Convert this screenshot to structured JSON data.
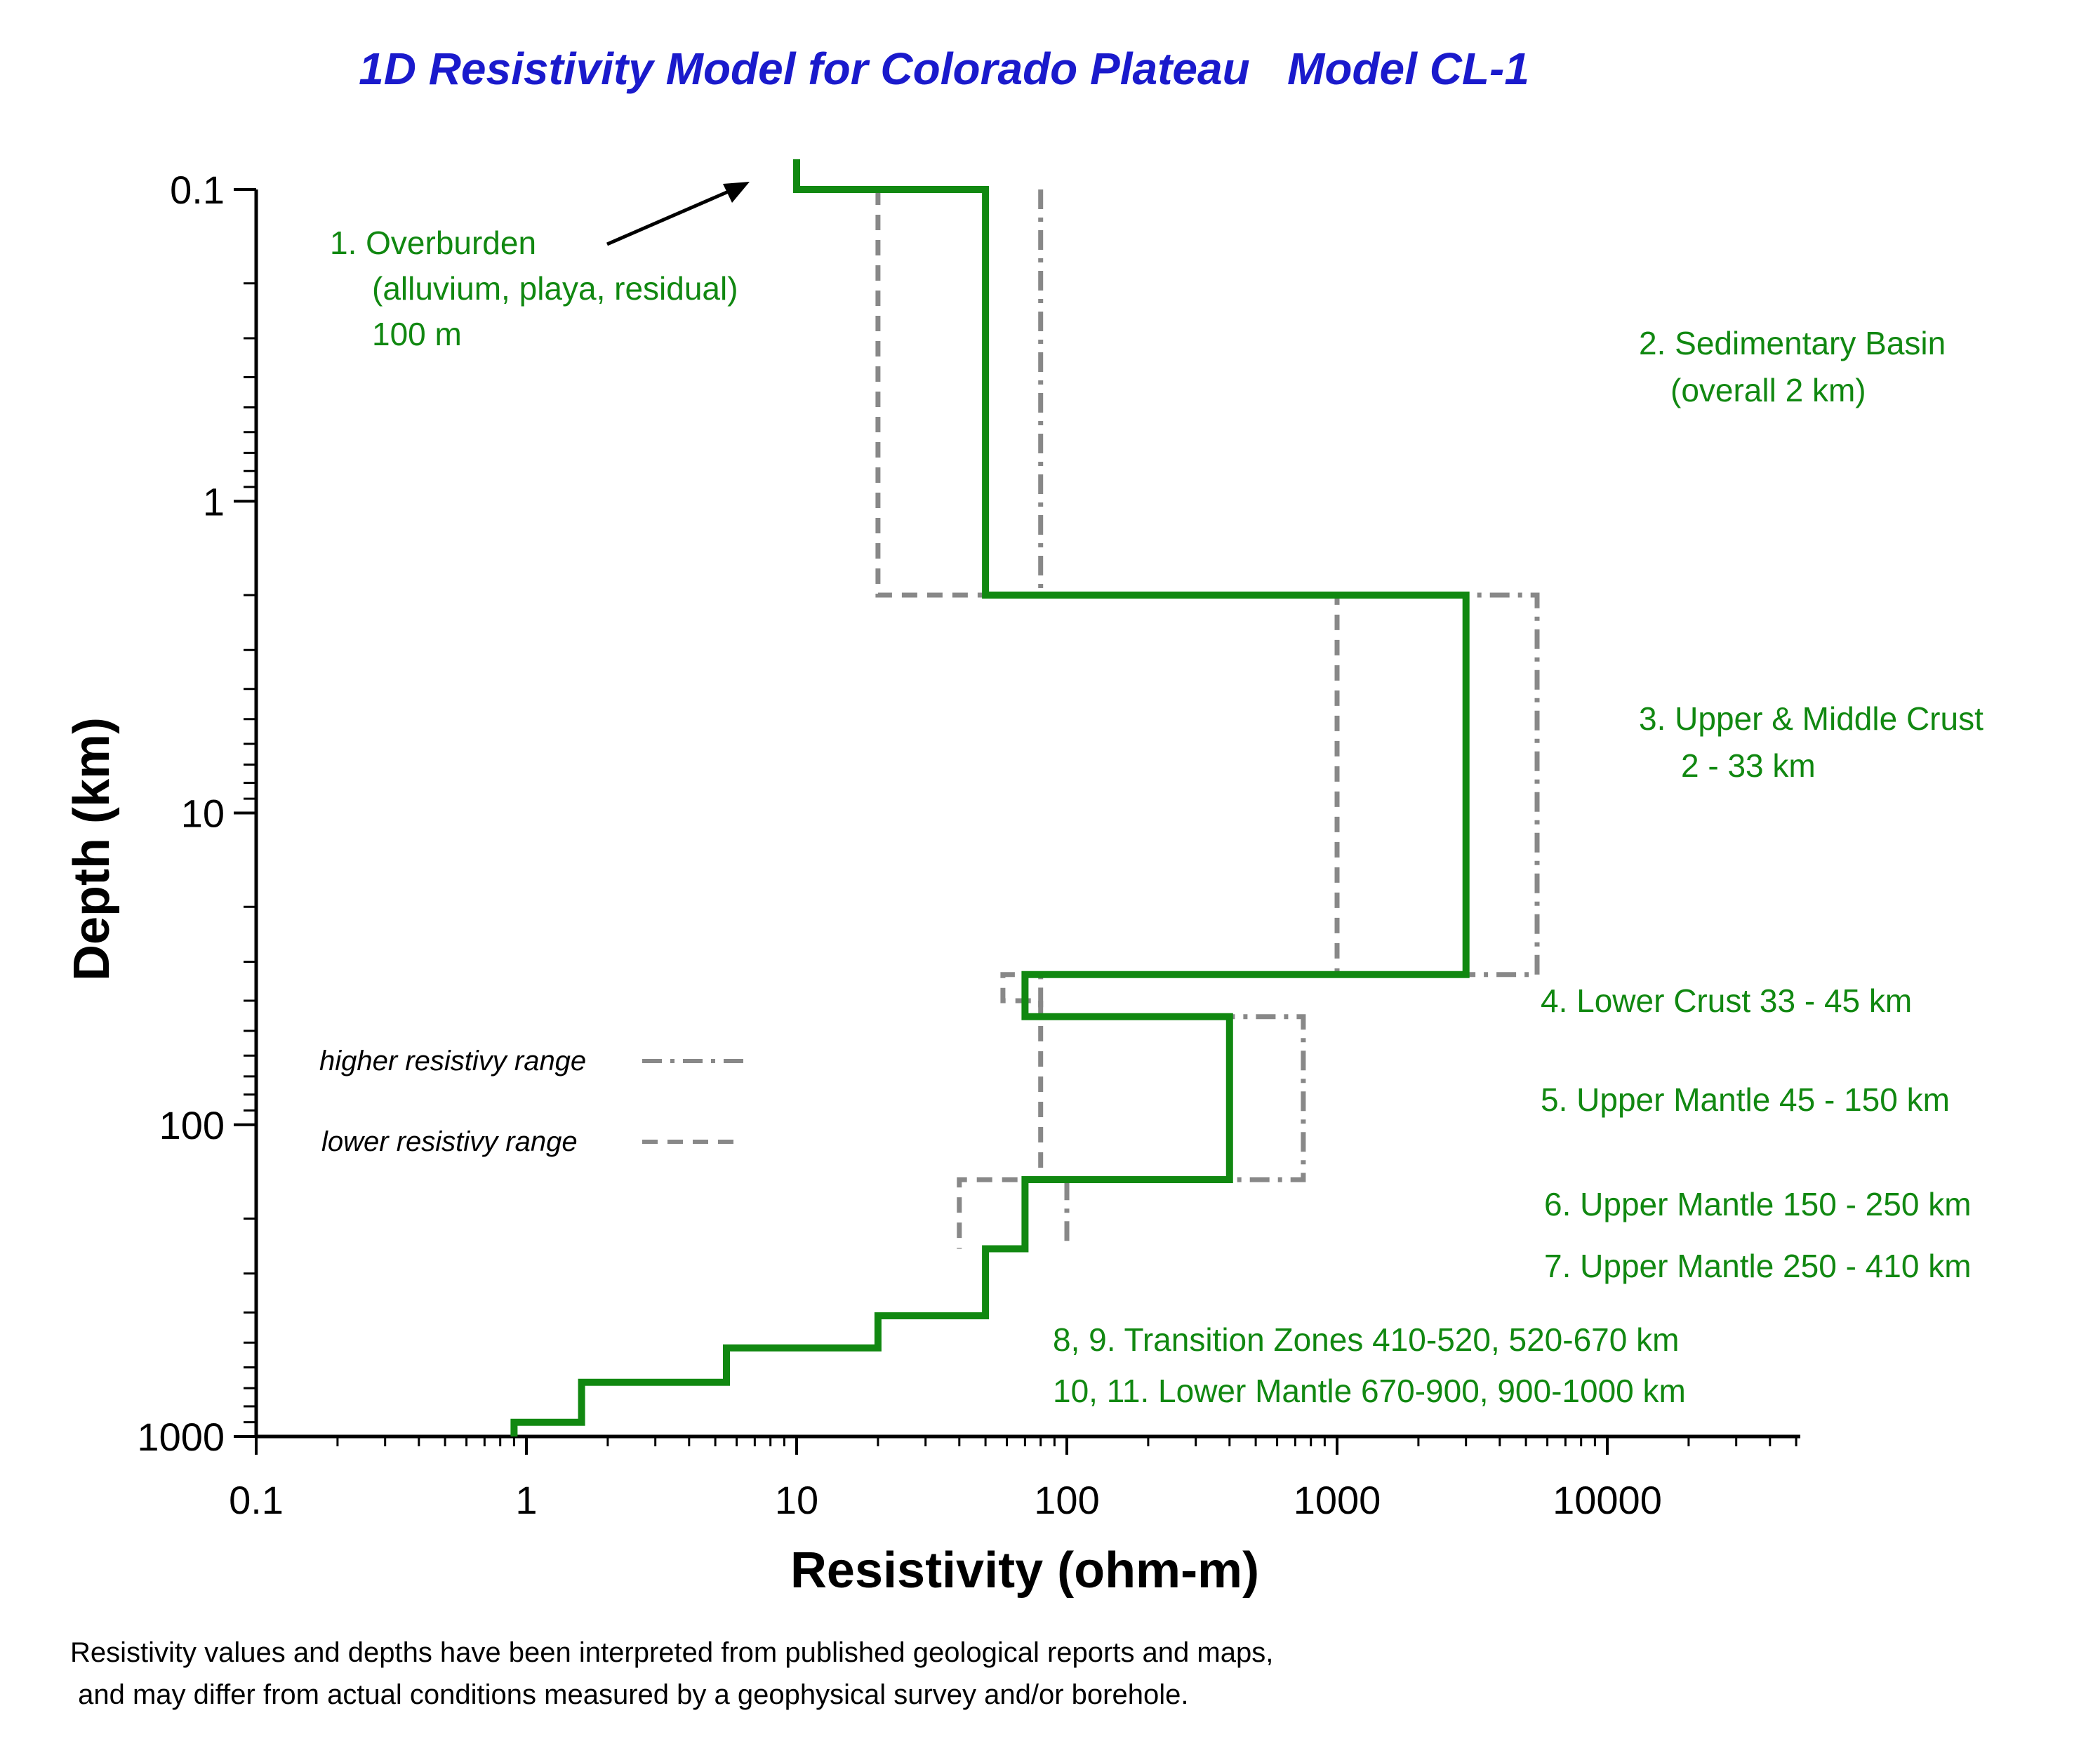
{
  "chart_data": {
    "type": "line",
    "title": "1D Resistivity Model for Colorado Plateau   Model CL-1",
    "xlabel": "Resistivity (ohm-m)",
    "ylabel": "Depth (km)",
    "x_scale": "log",
    "y_scale": "log",
    "y_inverted": true,
    "xlim": [
      0.1,
      50000
    ],
    "ylim": [
      0.1,
      1000
    ],
    "x_ticks": [
      "0.1",
      "1",
      "10",
      "100",
      "1000",
      "10000"
    ],
    "y_ticks": [
      "0.1",
      "1",
      "10",
      "100",
      "1000"
    ],
    "grid": false,
    "colors": {
      "title": "#1a1acc",
      "model": "#118811",
      "range": "#888888",
      "annotation": "#118811",
      "text": "#000000"
    },
    "series": [
      {
        "style": "solid",
        "points": [
          [
            10,
            0.08
          ],
          [
            10,
            0.1
          ],
          [
            50,
            0.1
          ],
          [
            50,
            2
          ],
          [
            3000,
            2
          ],
          [
            3000,
            33
          ],
          [
            70,
            33
          ],
          [
            70,
            45
          ],
          [
            400,
            45
          ],
          [
            400,
            150
          ],
          [
            70,
            150
          ],
          [
            70,
            250
          ],
          [
            50,
            250
          ],
          [
            50,
            410
          ],
          [
            20,
            410
          ],
          [
            20,
            520
          ],
          [
            5.5,
            520
          ],
          [
            5.5,
            670
          ],
          [
            1.6,
            670
          ],
          [
            1.6,
            900
          ],
          [
            0.9,
            900
          ],
          [
            0.9,
            1000
          ]
        ]
      },
      {
        "name": "higher resistivy range",
        "style": "dash-dot",
        "points": [
          [
            80,
            0.1
          ],
          [
            80,
            2
          ],
          [
            5500,
            2
          ],
          [
            5500,
            33
          ],
          [
            80,
            33
          ],
          [
            80,
            45
          ],
          [
            750,
            45
          ],
          [
            750,
            150
          ],
          [
            100,
            150
          ],
          [
            100,
            250
          ]
        ]
      },
      {
        "name": "lower resistivy range",
        "style": "dash",
        "points": [
          [
            20,
            0.1
          ],
          [
            20,
            2
          ],
          [
            1000,
            2
          ],
          [
            1000,
            33
          ],
          [
            58,
            33
          ],
          [
            58,
            40
          ],
          [
            80,
            40
          ],
          [
            80,
            150
          ],
          [
            40,
            150
          ],
          [
            40,
            250
          ]
        ]
      }
    ],
    "annotations": [
      {
        "lines": [
          "1. Overburden",
          "(alluvium, playa, residual)",
          "100 m"
        ]
      },
      {
        "lines": [
          "2. Sedimentary Basin",
          "(overall 2 km)"
        ]
      },
      {
        "lines": [
          "3. Upper & Middle Crust",
          "2 - 33 km"
        ]
      },
      {
        "lines": [
          "4. Lower Crust 33 - 45 km"
        ]
      },
      {
        "lines": [
          "5. Upper Mantle 45 - 150 km"
        ]
      },
      {
        "lines": [
          "6. Upper Mantle 150 - 250 km"
        ]
      },
      {
        "lines": [
          "7. Upper Mantle  250 - 410 km"
        ]
      },
      {
        "lines": [
          "8, 9. Transition Zones 410-520, 520-670 km"
        ]
      },
      {
        "lines": [
          "10, 11. Lower Mantle 670-900, 900-1000 km"
        ]
      }
    ],
    "legend": [
      {
        "label": "higher resistivy range",
        "style": "dash-dot"
      },
      {
        "label": "lower resistivy range",
        "style": "dash"
      }
    ],
    "legend_position": "left"
  },
  "footnote": {
    "line1": "Resistivity values and depths have been interpreted from published geological reports and maps,",
    "line2": " and may differ from actual conditions measured by a geophysical survey and/or borehole."
  }
}
